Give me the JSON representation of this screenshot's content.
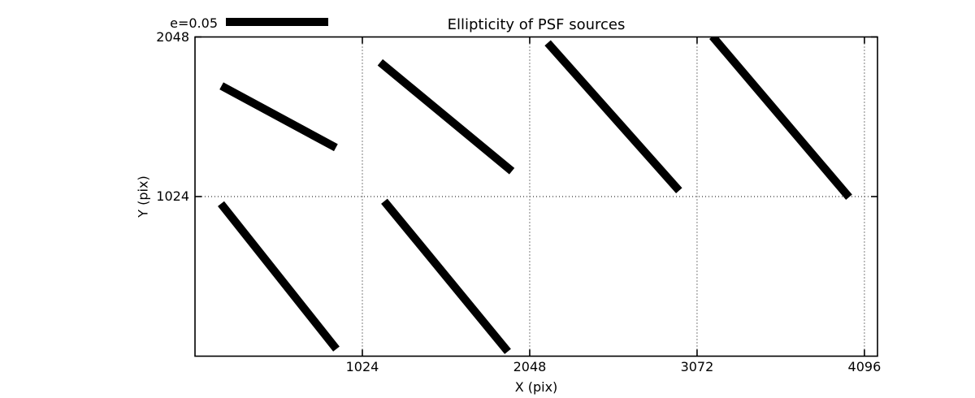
{
  "colors": {
    "foreground": "#000000",
    "background": "#ffffff"
  },
  "chart_data": {
    "type": "line",
    "subtype": "psf-ellipticity-whisker-plot",
    "title": "Ellipticity of PSF sources",
    "xlabel": "X (pix)",
    "ylabel": "Y (pix)",
    "xlim": [
      0,
      4176
    ],
    "ylim": [
      0,
      2048
    ],
    "xticks": [
      1024,
      2048,
      3072,
      4096
    ],
    "yticks": [
      1024,
      2048
    ],
    "grid": true,
    "grid_style": "dotted",
    "legend": {
      "label": "e=0.05",
      "position": "top-left-above-axes"
    },
    "whiskers": [
      {
        "x1": 162,
        "y1": 1734,
        "x2": 862,
        "y2": 1338
      },
      {
        "x1": 1133,
        "y1": 1885,
        "x2": 1939,
        "y2": 1187
      },
      {
        "x1": 2158,
        "y1": 2010,
        "x2": 2962,
        "y2": 1062
      },
      {
        "x1": 3166,
        "y1": 2052,
        "x2": 4002,
        "y2": 1020
      },
      {
        "x1": 159,
        "y1": 978,
        "x2": 865,
        "y2": 46
      },
      {
        "x1": 1158,
        "y1": 994,
        "x2": 1914,
        "y2": 30
      }
    ]
  }
}
